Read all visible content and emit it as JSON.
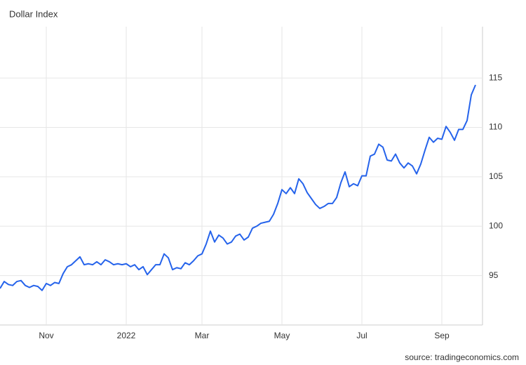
{
  "chart_data": {
    "type": "line",
    "title": "Dollar Index",
    "source": "source: tradingeconomics.com",
    "categories": [
      null,
      null,
      null,
      null,
      null,
      null,
      null,
      null,
      null,
      null,
      null,
      "Nov",
      null,
      null,
      null,
      null,
      null,
      null,
      null,
      null,
      null,
      null,
      null,
      null,
      null,
      null,
      null,
      null,
      null,
      null,
      "2022",
      null,
      null,
      null,
      null,
      null,
      null,
      null,
      null,
      null,
      null,
      null,
      null,
      null,
      null,
      null,
      null,
      null,
      "Mar",
      null,
      null,
      null,
      null,
      null,
      null,
      null,
      null,
      null,
      null,
      null,
      null,
      null,
      null,
      null,
      null,
      null,
      null,
      "May",
      null,
      null,
      null,
      null,
      null,
      null,
      null,
      null,
      null,
      null,
      null,
      null,
      null,
      null,
      null,
      null,
      null,
      null,
      "Jul",
      null,
      null,
      null,
      null,
      null,
      null,
      null,
      null,
      null,
      null,
      null,
      null,
      null,
      null,
      null,
      null,
      null,
      null,
      "Sep",
      null,
      null,
      null,
      null,
      null,
      null,
      null,
      null
    ],
    "values": [
      93.7,
      94.4,
      94.1,
      94.0,
      94.4,
      94.5,
      94.0,
      93.8,
      94.0,
      93.9,
      93.5,
      94.2,
      94.0,
      94.3,
      94.2,
      95.2,
      95.9,
      96.1,
      96.5,
      96.9,
      96.1,
      96.2,
      96.1,
      96.4,
      96.1,
      96.6,
      96.4,
      96.1,
      96.2,
      96.1,
      96.2,
      95.9,
      96.1,
      95.6,
      95.9,
      95.1,
      95.6,
      96.1,
      96.1,
      97.2,
      96.8,
      95.6,
      95.8,
      95.7,
      96.3,
      96.1,
      96.5,
      97.0,
      97.2,
      98.2,
      99.5,
      98.4,
      99.1,
      98.8,
      98.2,
      98.4,
      99.0,
      99.2,
      98.6,
      98.9,
      99.8,
      100.0,
      100.3,
      100.4,
      100.5,
      101.2,
      102.3,
      103.7,
      103.3,
      103.9,
      103.3,
      104.8,
      104.3,
      103.4,
      102.8,
      102.2,
      101.8,
      102.0,
      102.3,
      102.3,
      102.9,
      104.4,
      105.5,
      104.0,
      104.3,
      104.1,
      105.1,
      105.1,
      107.1,
      107.3,
      108.3,
      108.0,
      106.7,
      106.6,
      107.3,
      106.4,
      105.9,
      106.4,
      106.1,
      105.3,
      106.3,
      107.7,
      109.0,
      108.5,
      108.9,
      108.8,
      110.1,
      109.5,
      108.7,
      109.8,
      109.8,
      110.7,
      113.3,
      114.3
    ],
    "color": "#2563eb",
    "ylim": [
      90,
      120.2
    ],
    "yticks": [
      95,
      100,
      105,
      110,
      115
    ],
    "grid": true
  }
}
